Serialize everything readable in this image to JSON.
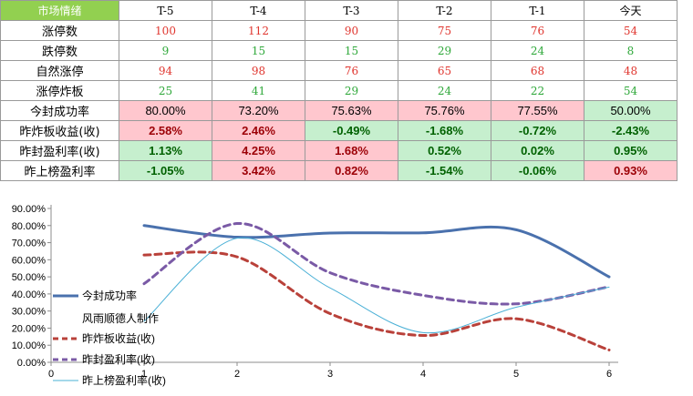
{
  "table": {
    "corner": "市场情绪",
    "columns": [
      "T-5",
      "T-4",
      "T-3",
      "T-2",
      "T-1",
      "今天"
    ],
    "count_rows": [
      {
        "label": "涨停数",
        "values": [
          "100",
          "112",
          "90",
          "75",
          "76",
          "54"
        ],
        "color": "red"
      },
      {
        "label": "跌停数",
        "values": [
          "9",
          "15",
          "15",
          "29",
          "24",
          "8"
        ],
        "color": "green"
      },
      {
        "label": "自然涨停",
        "values": [
          "94",
          "98",
          "76",
          "65",
          "68",
          "48"
        ],
        "color": "red"
      },
      {
        "label": "涨停炸板",
        "values": [
          "25",
          "41",
          "29",
          "24",
          "22",
          "54"
        ],
        "color": "green"
      }
    ],
    "pct_rows": [
      {
        "label": "今封成功率",
        "values": [
          "80.00%",
          "73.20%",
          "75.63%",
          "75.76%",
          "77.55%",
          "50.00%"
        ],
        "bold": false,
        "tones": [
          "pink",
          "pink",
          "pink",
          "pink",
          "pink",
          "green"
        ]
      },
      {
        "label": "昨炸板收益(收)",
        "values": [
          "2.58%",
          "2.46%",
          "-0.49%",
          "-1.68%",
          "-0.72%",
          "-2.43%"
        ],
        "bold": true,
        "tones": [
          "pink",
          "pink",
          "green",
          "green",
          "green",
          "green"
        ]
      },
      {
        "label": "昨封盈利率(收)",
        "values": [
          "1.13%",
          "4.25%",
          "1.68%",
          "0.52%",
          "0.02%",
          "0.95%"
        ],
        "bold": true,
        "tones": [
          "green",
          "pink",
          "pink",
          "green",
          "green",
          "green"
        ]
      },
      {
        "label": "昨上榜盈利率",
        "values": [
          "-1.05%",
          "3.42%",
          "0.82%",
          "-1.54%",
          "-0.06%",
          "0.93%"
        ],
        "bold": true,
        "tones": [
          "green",
          "pink",
          "pink",
          "green",
          "green",
          "pink"
        ]
      }
    ]
  },
  "chart_data": {
    "type": "line",
    "x": [
      1,
      2,
      3,
      4,
      5,
      6
    ],
    "xlim": [
      0,
      6
    ],
    "x_ticks": [
      "0",
      "1",
      "2",
      "3",
      "4",
      "5",
      "6"
    ],
    "ylim": [
      0,
      90
    ],
    "y_ticks": [
      "0.00%",
      "10.00%",
      "20.00%",
      "30.00%",
      "40.00%",
      "50.00%",
      "60.00%",
      "70.00%",
      "80.00%",
      "90.00%"
    ],
    "grid": false,
    "legend_position": "left",
    "note": "风雨顺德人制作",
    "series": [
      {
        "name": "今封成功率",
        "values": [
          80,
          73.2,
          75.63,
          75.76,
          77.55,
          50
        ],
        "color": "#4a71ad",
        "style": "solid-thick"
      },
      {
        "name": "昨炸板收益(收)",
        "values": [
          62.8,
          61.7,
          28.5,
          15.7,
          25.5,
          7.2
        ],
        "color": "#b9413a",
        "style": "dashed"
      },
      {
        "name": "昨封盈利率(收)",
        "values": [
          46,
          81.2,
          52.4,
          39.2,
          34.2,
          44.2
        ],
        "color": "#7a5aa6",
        "style": "dashed"
      },
      {
        "name": "昨上榜盈利率(收)",
        "values": [
          24,
          72.6,
          43.5,
          17.4,
          32.2,
          44
        ],
        "color": "#4ab0d6",
        "style": "solid-thin"
      }
    ]
  },
  "colors": {
    "corner_bg": "#92d050",
    "pink_bg": "#ffc7ce",
    "green_bg": "#c6efce",
    "red_text": "#e0362f",
    "green_text": "#2fa83a"
  }
}
